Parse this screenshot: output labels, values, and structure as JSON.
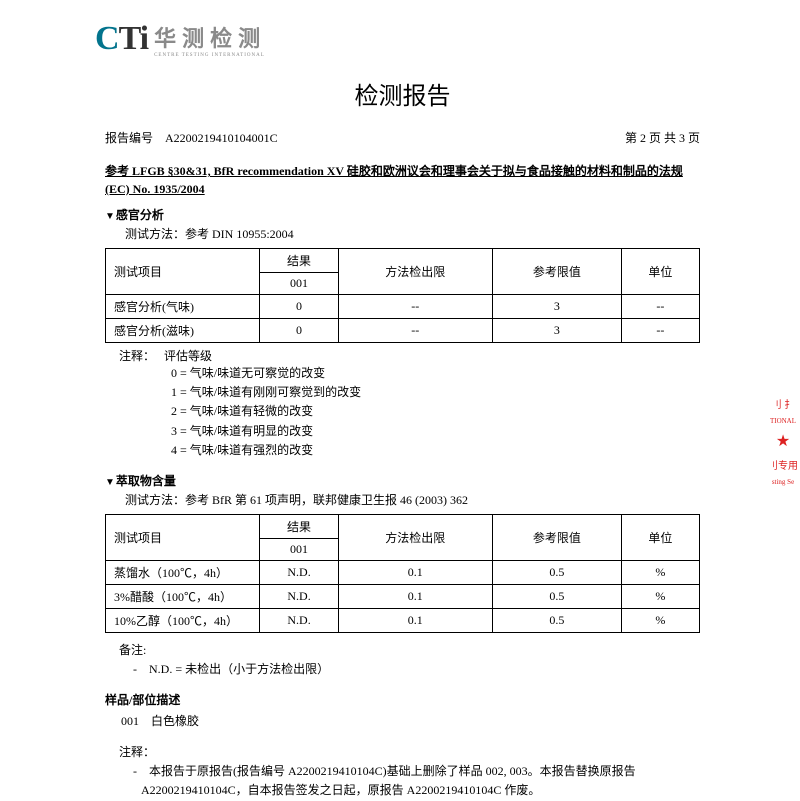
{
  "logo": {
    "cn": "华测检测",
    "en": "CENTRE TESTING INTERNATIONAL"
  },
  "title": "检测报告",
  "header": {
    "report_no_label": "报告编号",
    "report_no": "A2200219410104001C",
    "page_label": "第 2 页 共 3 页"
  },
  "section_head": "参考 LFGB §30&31, BfR recommendation XV 硅胶和欧洲议会和理事会关于拟与食品接触的材料和制品的法规(EC) No. 1935/2004",
  "sensory": {
    "heading": "感官分析",
    "method": "测试方法：参考 DIN 10955:2004",
    "cols": {
      "item": "测试项目",
      "result": "结果",
      "sub": "001",
      "mdl": "方法检出限",
      "limit": "参考限值",
      "unit": "单位"
    },
    "rows": [
      {
        "item": "感官分析(气味)",
        "result": "0",
        "mdl": "--",
        "limit": "3",
        "unit": "--"
      },
      {
        "item": "感官分析(滋味)",
        "result": "0",
        "mdl": "--",
        "limit": "3",
        "unit": "--"
      }
    ],
    "legend_label": "注释：",
    "legend_title": "评估等级",
    "legend": [
      "0 = 气味/味道无可察觉的改变",
      "1 = 气味/味道有刚刚可察觉到的改变",
      "2 = 气味/味道有轻微的改变",
      "3 = 气味/味道有明显的改变",
      "4 = 气味/味道有强烈的改变"
    ]
  },
  "extract": {
    "heading": "萃取物含量",
    "method": "测试方法：参考 BfR 第 61 项声明，联邦健康卫生报 46 (2003) 362",
    "rows": [
      {
        "item": "蒸馏水（100℃，4h）",
        "result": "N.D.",
        "mdl": "0.1",
        "limit": "0.5",
        "unit": "%"
      },
      {
        "item": "3%醋酸（100℃，4h）",
        "result": "N.D.",
        "mdl": "0.1",
        "limit": "0.5",
        "unit": "%"
      },
      {
        "item": "10%乙醇（100℃，4h）",
        "result": "N.D.",
        "mdl": "0.1",
        "limit": "0.5",
        "unit": "%"
      }
    ],
    "remark_label": "备注:",
    "remark": "-　N.D. = 未检出（小于方法检出限）"
  },
  "sample": {
    "heading": "样品/部位描述",
    "line": "001　白色橡胶"
  },
  "final": {
    "label": "注释：",
    "text": "-　本报告于原报告(报告编号 A2200219410104C)基础上删除了样品 002, 003。本报告替换原报告A2200219410104C，自本报告签发之日起，原报告 A2200219410104C 作废。"
  },
  "seal": {
    "a": "刂 扌",
    "b": "TIONAL",
    "c": "★",
    "d": "刂专用",
    "e": "sting Se"
  }
}
